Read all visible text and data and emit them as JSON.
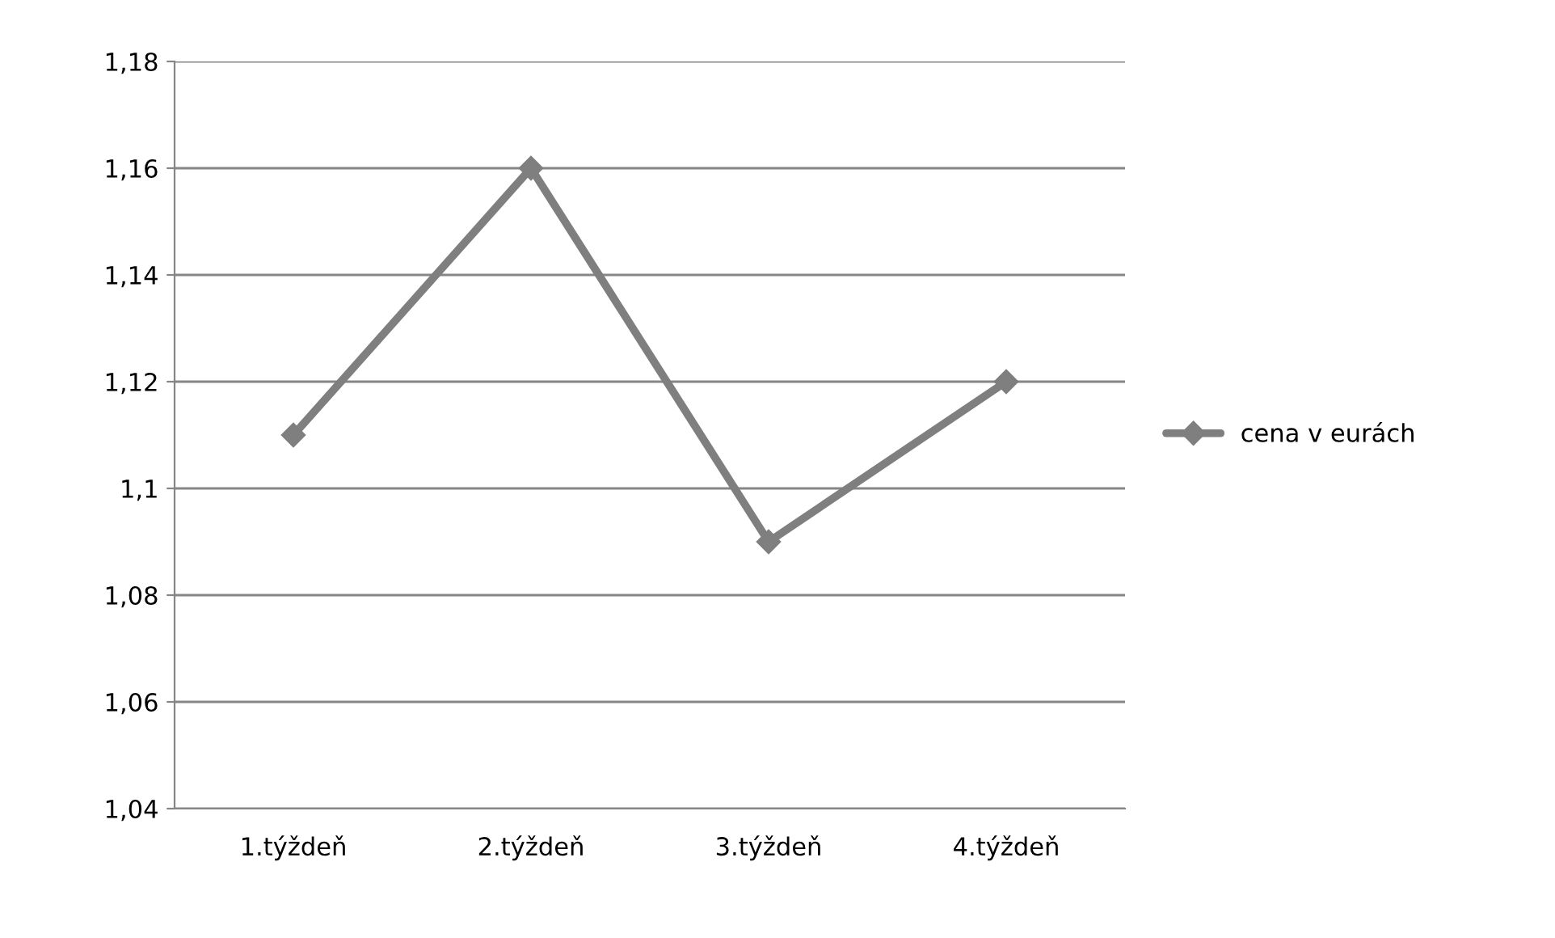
{
  "chart_data": {
    "type": "line",
    "categories": [
      "1.týždeň",
      "2.týždeň",
      "3.týždeň",
      "4.týždeň"
    ],
    "series": [
      {
        "name": "cena v eurách",
        "color": "#7f7f7f",
        "values": [
          1.11,
          1.16,
          1.09,
          1.12
        ]
      }
    ],
    "ylim": [
      1.04,
      1.18
    ],
    "yticks": [
      {
        "value": 1.04,
        "label": "1,04"
      },
      {
        "value": 1.06,
        "label": "1,06"
      },
      {
        "value": 1.08,
        "label": "1,08"
      },
      {
        "value": 1.1,
        "label": "1,1"
      },
      {
        "value": 1.12,
        "label": "1,12"
      },
      {
        "value": 1.14,
        "label": "1,14"
      },
      {
        "value": 1.16,
        "label": "1,16"
      },
      {
        "value": 1.18,
        "label": "1,18"
      }
    ],
    "grid": "y",
    "legend": "right",
    "marker": "diamond",
    "line_style": "solid"
  }
}
